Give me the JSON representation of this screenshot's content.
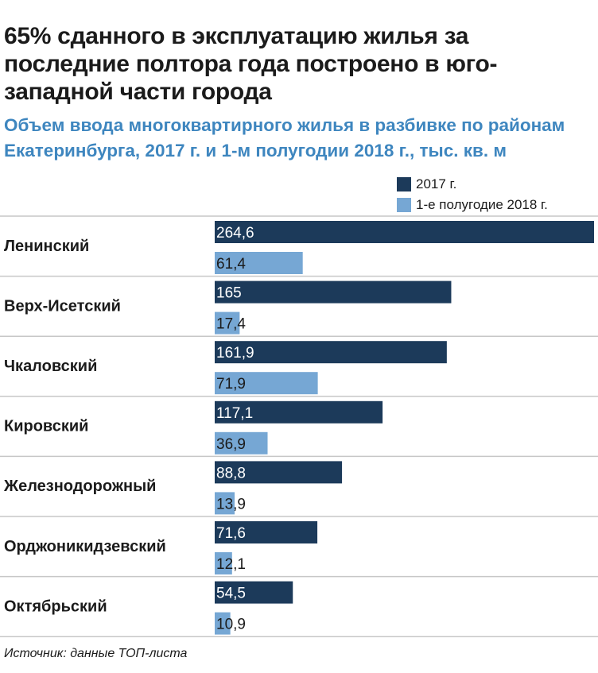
{
  "headline": "65% сданного в эксплуатацию жилья за последние полтора года построено в юго-западной части города",
  "source": "Источник: данные ТОП-листа",
  "colors": {
    "series_2017": "#1c3a5a",
    "series_2018": "#76a7d4",
    "subtitle": "#3e86bf",
    "divider": "#c7c7c7"
  },
  "chart_data": {
    "type": "bar",
    "orientation": "horizontal",
    "title": "Объем ввода многоквартирного жилья в разбивке по районам Екатеринбурга, 2017 г. и 1-м полугодии 2018 г., тыс. кв. м",
    "xlabel": "",
    "ylabel": "",
    "xlim": [
      0,
      264.6
    ],
    "legend_position": "top-right",
    "categories": [
      "Ленинский",
      "Верх-Исетский",
      "Чкаловский",
      "Кировский",
      "Железнодорожный",
      "Орджоникидзевский",
      "Октябрьский"
    ],
    "series": [
      {
        "name": "2017 г.",
        "values": [
          264.6,
          165,
          161.9,
          117.1,
          88.8,
          71.6,
          54.5
        ],
        "labels": [
          "264,6",
          "165",
          "161,9",
          "117,1",
          "88,8",
          "71,6",
          "54,5"
        ]
      },
      {
        "name": "1-е полугодие 2018 г.",
        "values": [
          61.4,
          17.4,
          71.9,
          36.9,
          13.9,
          12.1,
          10.9
        ],
        "labels": [
          "61,4",
          "17,4",
          "71,9",
          "36,9",
          "13,9",
          "12,1",
          "10,9"
        ]
      }
    ]
  }
}
